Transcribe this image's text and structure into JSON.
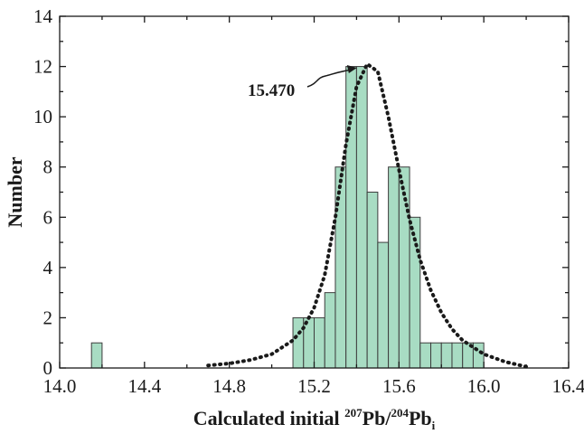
{
  "chart_data": {
    "type": "bar",
    "xlabel": {
      "main": "Calculated initial ",
      "sup1": "207",
      "mid": "Pb/",
      "sup2": "204",
      "end": "Pb",
      "sub": "i"
    },
    "ylabel": "Number",
    "xlim": [
      14.0,
      16.4
    ],
    "ylim": [
      0,
      14
    ],
    "xticks": [
      "14.0",
      "14.4",
      "14.8",
      "15.2",
      "15.6",
      "16.0",
      "16.4"
    ],
    "yticks": [
      "0",
      "2",
      "4",
      "6",
      "8",
      "10",
      "12",
      "14"
    ],
    "bin_width": 0.05,
    "bins": [
      {
        "x0": 14.15,
        "count": 1
      },
      {
        "x0": 15.1,
        "count": 2
      },
      {
        "x0": 15.15,
        "count": 2
      },
      {
        "x0": 15.2,
        "count": 2
      },
      {
        "x0": 15.25,
        "count": 3
      },
      {
        "x0": 15.3,
        "count": 8
      },
      {
        "x0": 15.35,
        "count": 12
      },
      {
        "x0": 15.4,
        "count": 12
      },
      {
        "x0": 15.45,
        "count": 7
      },
      {
        "x0": 15.5,
        "count": 5
      },
      {
        "x0": 15.55,
        "count": 8
      },
      {
        "x0": 15.6,
        "count": 8
      },
      {
        "x0": 15.65,
        "count": 6
      },
      {
        "x0": 15.7,
        "count": 1
      },
      {
        "x0": 15.75,
        "count": 1
      },
      {
        "x0": 15.8,
        "count": 1
      },
      {
        "x0": 15.85,
        "count": 1
      },
      {
        "x0": 15.9,
        "count": 1
      },
      {
        "x0": 15.95,
        "count": 1
      }
    ],
    "fit_curve": {
      "style": "dotted",
      "peak_x": 15.47,
      "peak_y": 12.1,
      "points": [
        [
          14.7,
          0.1
        ],
        [
          14.8,
          0.18
        ],
        [
          14.9,
          0.32
        ],
        [
          15.0,
          0.55
        ],
        [
          15.1,
          1.1
        ],
        [
          15.15,
          1.6
        ],
        [
          15.2,
          2.4
        ],
        [
          15.25,
          3.7
        ],
        [
          15.3,
          6.0
        ],
        [
          15.35,
          8.9
        ],
        [
          15.4,
          11.2
        ],
        [
          15.45,
          12.1
        ],
        [
          15.5,
          11.8
        ],
        [
          15.55,
          10.0
        ],
        [
          15.6,
          7.9
        ],
        [
          15.65,
          5.9
        ],
        [
          15.7,
          4.3
        ],
        [
          15.75,
          3.1
        ],
        [
          15.8,
          2.2
        ],
        [
          15.85,
          1.55
        ],
        [
          15.9,
          1.1
        ],
        [
          16.0,
          0.55
        ],
        [
          16.1,
          0.25
        ],
        [
          16.2,
          0.05
        ]
      ]
    },
    "annotation": {
      "text": "15.470",
      "points_to_x": 15.47
    },
    "colors": {
      "bar_fill": "#a8dcc3",
      "bar_stroke": "#3d3d3d",
      "axis": "#1a1a1a"
    }
  }
}
